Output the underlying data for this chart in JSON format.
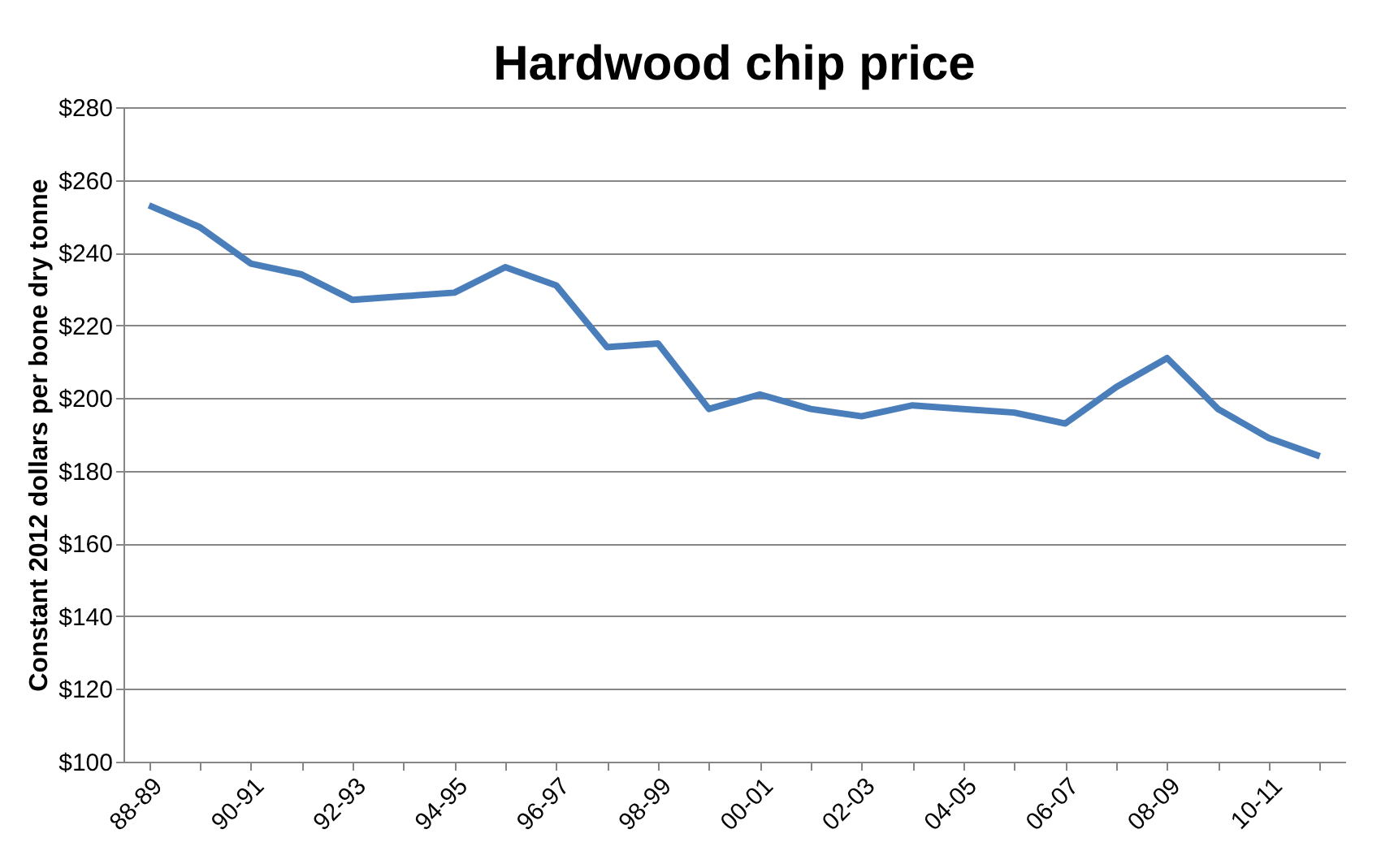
{
  "chart_data": {
    "type": "line",
    "title": "Hardwood chip price",
    "ylabel": "Constant 2012 dollars per bone dry tonne",
    "categories": [
      "88-89",
      null,
      "90-91",
      null,
      "92-93",
      null,
      "94-95",
      null,
      "96-97",
      null,
      "98-99",
      null,
      "00-01",
      null,
      "02-03",
      null,
      "04-05",
      null,
      "06-07",
      null,
      "08-09",
      null,
      "10-11",
      null
    ],
    "series": [
      {
        "color": "#4a7ebb",
        "values": [
          253,
          247,
          237,
          234,
          227,
          228,
          229,
          236,
          231,
          214,
          215,
          197,
          201,
          197,
          195,
          198,
          197,
          196,
          193,
          203,
          211,
          197,
          189,
          184
        ]
      }
    ],
    "ylim": [
      100,
      280
    ],
    "yticks": [
      {
        "value": 100,
        "label": "$100"
      },
      {
        "value": 120,
        "label": "$120"
      },
      {
        "value": 140,
        "label": "$140"
      },
      {
        "value": 160,
        "label": "$160"
      },
      {
        "value": 180,
        "label": "$180"
      },
      {
        "value": 200,
        "label": "$200"
      },
      {
        "value": 220,
        "label": "$220"
      },
      {
        "value": 240,
        "label": "$240"
      },
      {
        "value": 260,
        "label": "$260"
      },
      {
        "value": 280,
        "label": "$280"
      }
    ],
    "grid": "y",
    "legend": false,
    "marker": "none",
    "line_style": "solid"
  }
}
